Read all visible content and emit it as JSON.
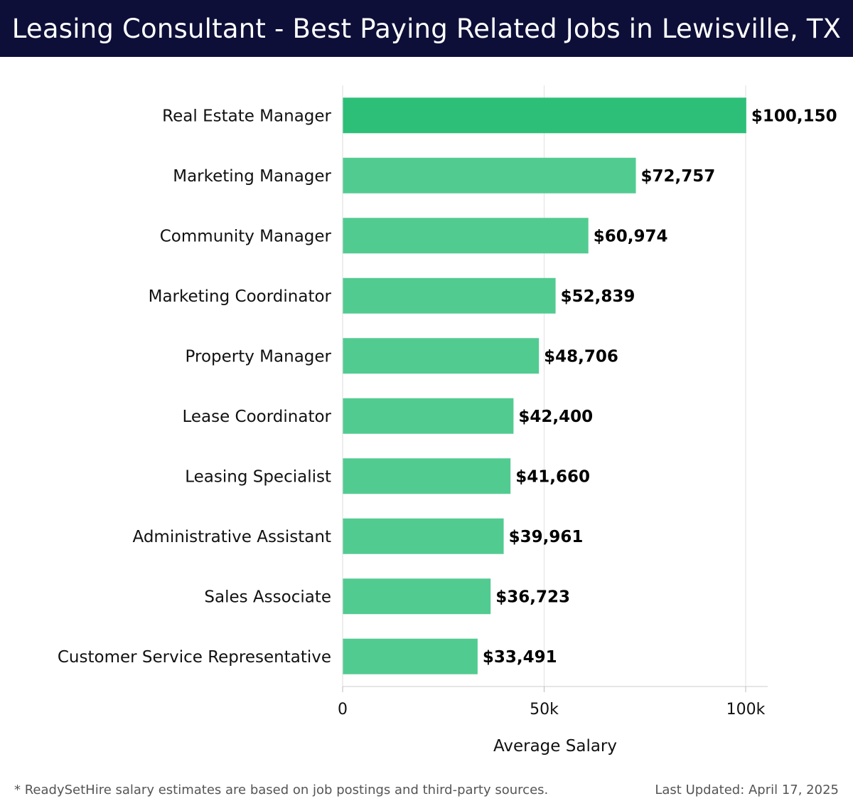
{
  "header": {
    "title": "Leasing Consultant - Best Paying Related Jobs in Lewisville, TX"
  },
  "chart_data": {
    "type": "bar",
    "orientation": "horizontal",
    "title": "Leasing Consultant - Best Paying Related Jobs in Lewisville, TX",
    "categories": [
      "Real Estate Manager",
      "Marketing Manager",
      "Community Manager",
      "Marketing Coordinator",
      "Property Manager",
      "Lease Coordinator",
      "Leasing Specialist",
      "Administrative Assistant",
      "Sales Associate",
      "Customer Service Representative"
    ],
    "values": [
      100150,
      72757,
      60974,
      52839,
      48706,
      42400,
      41660,
      39961,
      36723,
      33491
    ],
    "value_labels": [
      "$100,150",
      "$72,757",
      "$60,974",
      "$52,839",
      "$48,706",
      "$42,400",
      "$41,660",
      "$39,961",
      "$36,723",
      "$33,491"
    ],
    "xlabel": "Average Salary",
    "ylabel": "",
    "xlim": [
      0,
      105000
    ],
    "xticks": [
      0,
      50000,
      100000
    ],
    "xtick_labels": [
      "0",
      "50k",
      "100k"
    ],
    "grid": true,
    "colors": {
      "top_bar": "#2dbf78",
      "bar": "#52cb91"
    }
  },
  "footer": {
    "note": "* ReadySetHire salary estimates are based on job postings and third-party sources.",
    "updated": "Last Updated: April 17, 2025"
  }
}
